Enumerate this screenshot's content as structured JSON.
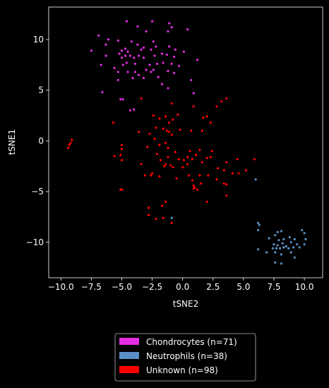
{
  "chart_data": {
    "type": "scatter",
    "xlabel": "tSNE2",
    "ylabel": "tSNE1",
    "xlim": [
      -11,
      11.5
    ],
    "ylim": [
      -13.5,
      13.2
    ],
    "xticks": [
      -10.0,
      -7.5,
      -5.0,
      -2.5,
      0.0,
      2.5,
      5.0,
      7.5,
      10.0
    ],
    "xtick_labels": [
      "−10.0",
      "−7.5",
      "−5.0",
      "−2.5",
      "0.0",
      "2.5",
      "5.0",
      "7.5",
      "10.0"
    ],
    "yticks": [
      -10,
      -5,
      0,
      5,
      10
    ],
    "ytick_labels": [
      "−10",
      "−5",
      "0",
      "5",
      "10"
    ],
    "grid": false,
    "legend_position": "bottom-center",
    "series": [
      {
        "name": "Chondrocytes (n=71)",
        "color": "#e32ee3",
        "points": [
          [
            -4.6,
            11.8
          ],
          [
            -3.7,
            11.3
          ],
          [
            -2.5,
            11.8
          ],
          [
            -1.1,
            11.6
          ],
          [
            -0.9,
            11.2
          ],
          [
            -1.2,
            10.8
          ],
          [
            -3.0,
            10.8
          ],
          [
            0.4,
            11.0
          ],
          [
            -6.9,
            10.4
          ],
          [
            -6.1,
            10.0
          ],
          [
            -6.3,
            9.5
          ],
          [
            -5.3,
            9.9
          ],
          [
            -4.2,
            9.8
          ],
          [
            -3.7,
            9.5
          ],
          [
            -2.4,
            9.8
          ],
          [
            -1.1,
            9.3
          ],
          [
            -7.5,
            8.9
          ],
          [
            -5.0,
            8.9
          ],
          [
            -4.7,
            9.1
          ],
          [
            -4.5,
            8.8
          ],
          [
            -3.4,
            9.0
          ],
          [
            -3.2,
            9.2
          ],
          [
            -2.6,
            9.0
          ],
          [
            -2.2,
            9.3
          ],
          [
            -0.6,
            9.0
          ],
          [
            0.1,
            8.8
          ],
          [
            -6.3,
            8.4
          ],
          [
            -5.2,
            8.6
          ],
          [
            -5.0,
            8.2
          ],
          [
            -4.7,
            8.4
          ],
          [
            -4.3,
            8.4
          ],
          [
            -4.0,
            8.2
          ],
          [
            -3.6,
            8.4
          ],
          [
            -3.2,
            8.2
          ],
          [
            -2.3,
            8.4
          ],
          [
            -1.7,
            8.6
          ],
          [
            -1.3,
            8.5
          ],
          [
            -0.7,
            8.3
          ],
          [
            1.2,
            8.0
          ],
          [
            -6.7,
            7.5
          ],
          [
            -5.6,
            7.2
          ],
          [
            -4.9,
            7.5
          ],
          [
            -4.6,
            7.7
          ],
          [
            -3.9,
            7.6
          ],
          [
            -2.7,
            7.5
          ],
          [
            -2.1,
            7.6
          ],
          [
            -1.6,
            7.7
          ],
          [
            -0.9,
            7.6
          ],
          [
            -0.3,
            7.4
          ],
          [
            -5.3,
            6.8
          ],
          [
            -4.5,
            6.8
          ],
          [
            -3.9,
            6.8
          ],
          [
            -3.0,
            7.0
          ],
          [
            -2.6,
            6.8
          ],
          [
            -2.4,
            7.0
          ],
          [
            -1.2,
            6.9
          ],
          [
            -0.7,
            6.7
          ],
          [
            -5.3,
            6.0
          ],
          [
            -4.1,
            6.2
          ],
          [
            -3.6,
            6.5
          ],
          [
            -3.2,
            6.2
          ],
          [
            -2.0,
            6.3
          ],
          [
            0.7,
            6.0
          ],
          [
            -6.6,
            4.8
          ],
          [
            -1.7,
            5.6
          ],
          [
            -1.2,
            5.2
          ],
          [
            0.9,
            4.7
          ],
          [
            -5.1,
            4.1
          ],
          [
            -4.9,
            4.1
          ],
          [
            -4.3,
            3.0
          ],
          [
            -4.0,
            3.1
          ]
        ]
      },
      {
        "name": "Neutrophils (n=38)",
        "color": "#5b8fc4",
        "points": [
          [
            6.0,
            -3.8
          ],
          [
            -0.9,
            -7.6
          ],
          [
            6.2,
            -8.1
          ],
          [
            6.3,
            -8.3
          ],
          [
            6.2,
            -8.8
          ],
          [
            6.2,
            -10.7
          ],
          [
            7.1,
            -9.6
          ],
          [
            7.6,
            -9.3
          ],
          [
            7.8,
            -9.0
          ],
          [
            8.1,
            -8.9
          ],
          [
            9.8,
            -8.8
          ],
          [
            10.0,
            -9.1
          ],
          [
            7.9,
            -9.8
          ],
          [
            8.3,
            -9.7
          ],
          [
            8.8,
            -9.5
          ],
          [
            9.2,
            -9.7
          ],
          [
            10.1,
            -9.7
          ],
          [
            7.5,
            -10.2
          ],
          [
            7.8,
            -10.3
          ],
          [
            8.2,
            -10.1
          ],
          [
            8.9,
            -10.0
          ],
          [
            9.4,
            -10.2
          ],
          [
            10.0,
            -10.2
          ],
          [
            7.4,
            -10.6
          ],
          [
            7.7,
            -10.6
          ],
          [
            8.0,
            -10.6
          ],
          [
            8.3,
            -10.5
          ],
          [
            8.5,
            -10.4
          ],
          [
            8.7,
            -10.6
          ],
          [
            9.1,
            -10.5
          ],
          [
            9.6,
            -10.5
          ],
          [
            6.9,
            -11.0
          ],
          [
            7.6,
            -11.0
          ],
          [
            8.1,
            -11.2
          ],
          [
            8.9,
            -11.0
          ],
          [
            9.2,
            -11.5
          ],
          [
            7.6,
            -12.0
          ],
          [
            8.1,
            -12.1
          ]
        ]
      },
      {
        "name": "Unknown (n=98)",
        "color": "#ff0000",
        "points": [
          [
            3.6,
            4.2
          ],
          [
            3.2,
            3.9
          ],
          [
            2.8,
            3.4
          ],
          [
            1.7,
            2.3
          ],
          [
            2.3,
            1.8
          ],
          [
            -3.4,
            4.2
          ],
          [
            -0.9,
            3.7
          ],
          [
            0.9,
            3.4
          ],
          [
            -2.4,
            2.5
          ],
          [
            -1.9,
            2.2
          ],
          [
            -1.4,
            2.4
          ],
          [
            -0.8,
            2.1
          ],
          [
            -0.4,
            2.6
          ],
          [
            2.0,
            2.4
          ],
          [
            -5.7,
            1.8
          ],
          [
            -1.1,
            1.8
          ],
          [
            -2.2,
            1.3
          ],
          [
            -1.6,
            1.2
          ],
          [
            -1.3,
            1.0
          ],
          [
            -1.1,
            0.9
          ],
          [
            -0.9,
            0.6
          ],
          [
            -0.2,
            1.1
          ],
          [
            0.7,
            1.0
          ],
          [
            1.6,
            1.0
          ],
          [
            -3.6,
            0.9
          ],
          [
            -2.7,
            0.7
          ],
          [
            -2.3,
            0.2
          ],
          [
            -1.9,
            -0.4
          ],
          [
            -1.4,
            -0.2
          ],
          [
            -1.2,
            -0.7
          ],
          [
            -2.9,
            -0.6
          ],
          [
            -2.1,
            -1.3
          ],
          [
            -1.8,
            -1.9
          ],
          [
            -1.2,
            -1.6
          ],
          [
            -1.0,
            -2.4
          ],
          [
            -0.6,
            -1.1
          ],
          [
            -0.3,
            -1.8
          ],
          [
            0.1,
            -1.9
          ],
          [
            0.4,
            -1.6
          ],
          [
            0.6,
            -1.0
          ],
          [
            0.8,
            -1.8
          ],
          [
            1.1,
            -1.4
          ],
          [
            1.4,
            -0.9
          ],
          [
            -9.1,
            0.1
          ],
          [
            -9.2,
            -0.2
          ],
          [
            -9.3,
            -0.4
          ],
          [
            -9.4,
            -0.7
          ],
          [
            -5.0,
            -0.4
          ],
          [
            -5.0,
            -0.8
          ],
          [
            -5.1,
            -1.4
          ],
          [
            -5.0,
            -1.9
          ],
          [
            -5.6,
            -1.5
          ],
          [
            -3.4,
            -2.3
          ],
          [
            -1.4,
            -2.3
          ],
          [
            -1.5,
            -2.5
          ],
          [
            -0.8,
            -2.6
          ],
          [
            0.0,
            -2.6
          ],
          [
            0.4,
            -2.3
          ],
          [
            1.6,
            -2.1
          ],
          [
            2.0,
            -1.7
          ],
          [
            2.3,
            -1.6
          ],
          [
            2.4,
            -1.0
          ],
          [
            3.6,
            -2.1
          ],
          [
            4.5,
            -1.8
          ],
          [
            5.9,
            -1.8
          ],
          [
            2.9,
            -2.7
          ],
          [
            3.4,
            -2.9
          ],
          [
            4.1,
            -3.2
          ],
          [
            4.6,
            -3.2
          ],
          [
            5.2,
            -2.9
          ],
          [
            -2.6,
            -3.4
          ],
          [
            -3.1,
            -3.4
          ],
          [
            -2.5,
            -3.2
          ],
          [
            -1.9,
            -3.5
          ],
          [
            -0.5,
            -3.7
          ],
          [
            0.5,
            -3.4
          ],
          [
            1.4,
            -3.4
          ],
          [
            2.1,
            -3.4
          ],
          [
            2.8,
            -3.8
          ],
          [
            3.4,
            -4.2
          ],
          [
            3.6,
            -4.3
          ],
          [
            0.8,
            -3.9
          ],
          [
            0.9,
            -4.4
          ],
          [
            0.9,
            -4.7
          ],
          [
            1.0,
            -4.6
          ],
          [
            1.2,
            -4.8
          ],
          [
            1.5,
            -4.2
          ],
          [
            3.6,
            -5.4
          ],
          [
            -5.1,
            -4.8
          ],
          [
            -5.0,
            -4.8
          ],
          [
            2.0,
            -6.0
          ],
          [
            -1.4,
            -6.0
          ],
          [
            -1.7,
            -6.4
          ],
          [
            -2.8,
            -6.6
          ],
          [
            -2.8,
            -7.3
          ],
          [
            -2.2,
            -7.7
          ],
          [
            -1.6,
            -7.6
          ],
          [
            -0.9,
            -8.1
          ]
        ]
      }
    ]
  }
}
